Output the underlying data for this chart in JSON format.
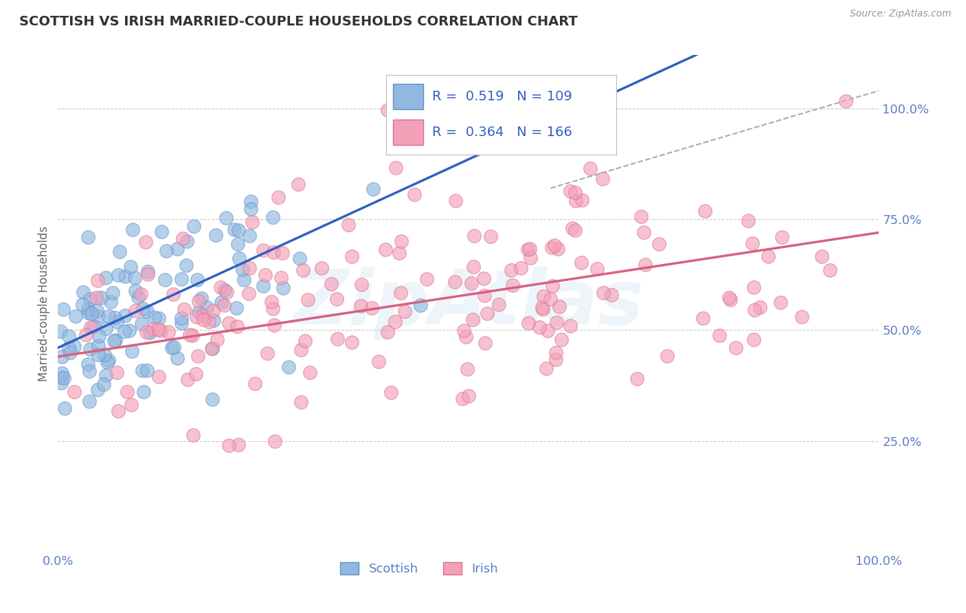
{
  "title": "SCOTTISH VS IRISH MARRIED-COUPLE HOUSEHOLDS CORRELATION CHART",
  "source": "Source: ZipAtlas.com",
  "ylabel": "Married-couple Households",
  "legend_entries": [
    {
      "label": "Scottish",
      "color": "#a8c8e8",
      "R": 0.519,
      "N": 109
    },
    {
      "label": "Irish",
      "color": "#f4a0b8",
      "R": 0.364,
      "N": 166
    }
  ],
  "ytick_labels": [
    "25.0%",
    "50.0%",
    "75.0%",
    "100.0%"
  ],
  "ytick_values": [
    0.25,
    0.5,
    0.75,
    1.0
  ],
  "title_color": "#333333",
  "axis_label_color": "#5b7fc4",
  "grid_color": "#c8c8c8",
  "watermark": "ZipAtlas",
  "watermark_color": "#a8c8e8",
  "scottish_dot_color": "#90b8e0",
  "scottish_dot_edge": "#6090c8",
  "irish_dot_color": "#f4a0b8",
  "irish_dot_edge": "#d87090",
  "blue_line_color": "#3060c0",
  "pink_line_color": "#d86080",
  "dashed_line_color": "#aaaaaa",
  "background_color": "#ffffff",
  "legend_text_color": "#3060c0",
  "blue_line_slope": 0.85,
  "blue_line_intercept": 0.46,
  "pink_line_slope": 0.28,
  "pink_line_intercept": 0.44
}
